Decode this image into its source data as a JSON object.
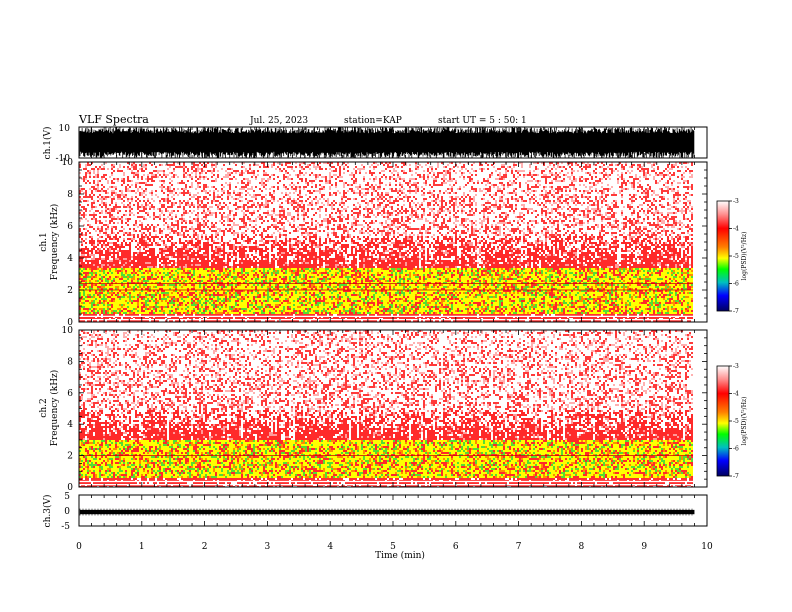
{
  "header": {
    "title": "VLF Spectra",
    "date": "Jul. 25, 2023",
    "station": "station=KAP",
    "start": "start  UT =  5 : 50: 1"
  },
  "colors": {
    "axis": "#000000",
    "background": "#ffffff",
    "spectrum_low": "#ffffff",
    "spectrum_mid": "#ff2a2a",
    "spectrum_band": "#ffff00",
    "spectrum_hot": "#33dd33"
  },
  "chart_data": [
    {
      "type": "line",
      "name": "ch1-waveform",
      "ylabel": "ch.1(V)",
      "ylim": [
        -10,
        10
      ],
      "yticks": [
        "10",
        "-10"
      ],
      "x": [
        0,
        9.8
      ],
      "description_level": "dense noisy waveform filling ~ -10 to 10 V"
    },
    {
      "type": "heatmap",
      "name": "ch1-spectrogram",
      "ylabel": "Frequency (kHz)",
      "panel_label": "ch.1",
      "ylim": [
        0,
        10
      ],
      "yticks": [
        "0",
        "2",
        "4",
        "6",
        "8",
        "10"
      ],
      "xlim": [
        0,
        9.8
      ],
      "colorbar": {
        "label": "log(PSD)(V²/Hz)",
        "range": [
          -7,
          -3
        ],
        "ticks": [
          "-3",
          "-4",
          "-5",
          "-6",
          "-7"
        ],
        "colors": [
          "#ff0000",
          "#ffa500",
          "#ffff00",
          "#00ff00",
          "#00c0c0",
          "#0000ff",
          "#000080"
        ]
      },
      "bands": [
        {
          "from": 0,
          "to": 0.6,
          "level": "red"
        },
        {
          "from": 0.6,
          "to": 3.4,
          "level": "yellow-green"
        },
        {
          "from": 3.4,
          "to": 5.5,
          "level": "red"
        },
        {
          "from": 5.5,
          "to": 10,
          "level": "sparse-red"
        }
      ],
      "lines_khz": [
        2.0,
        2.4
      ]
    },
    {
      "type": "heatmap",
      "name": "ch2-spectrogram",
      "ylabel": "Frequency (kHz)",
      "panel_label": "ch.2",
      "ylim": [
        0,
        10
      ],
      "yticks": [
        "0",
        "2",
        "4",
        "6",
        "8",
        "10"
      ],
      "xlim": [
        0,
        9.8
      ],
      "colorbar": {
        "label": "log(PSD)(V²/Hz)",
        "range": [
          -7,
          -3
        ],
        "ticks": [
          "-3",
          "-4",
          "-5",
          "-6",
          "-7"
        ],
        "colors": [
          "#ff0000",
          "#ffa500",
          "#ffff00",
          "#00ff00",
          "#00c0c0",
          "#0000ff",
          "#000080"
        ]
      },
      "bands": [
        {
          "from": 0,
          "to": 0.6,
          "level": "red"
        },
        {
          "from": 0.6,
          "to": 3.0,
          "level": "yellow-green"
        },
        {
          "from": 3.0,
          "to": 5.0,
          "level": "red"
        },
        {
          "from": 5.0,
          "to": 10,
          "level": "sparse-red"
        }
      ],
      "lines_khz": [
        2.0
      ]
    },
    {
      "type": "line",
      "name": "ch3-waveform",
      "ylabel": "ch.3(V)",
      "ylim": [
        -5,
        5
      ],
      "yticks": [
        "5",
        "0",
        "-5"
      ],
      "x": [
        0,
        9.8
      ],
      "description_level": "thick band around ~ -0.5 V"
    }
  ],
  "xaxis": {
    "label": "Time (min)",
    "ticks": [
      "0",
      "1",
      "2",
      "3",
      "4",
      "5",
      "6",
      "7",
      "8",
      "9",
      "10"
    ],
    "xlim": [
      0,
      10
    ]
  }
}
